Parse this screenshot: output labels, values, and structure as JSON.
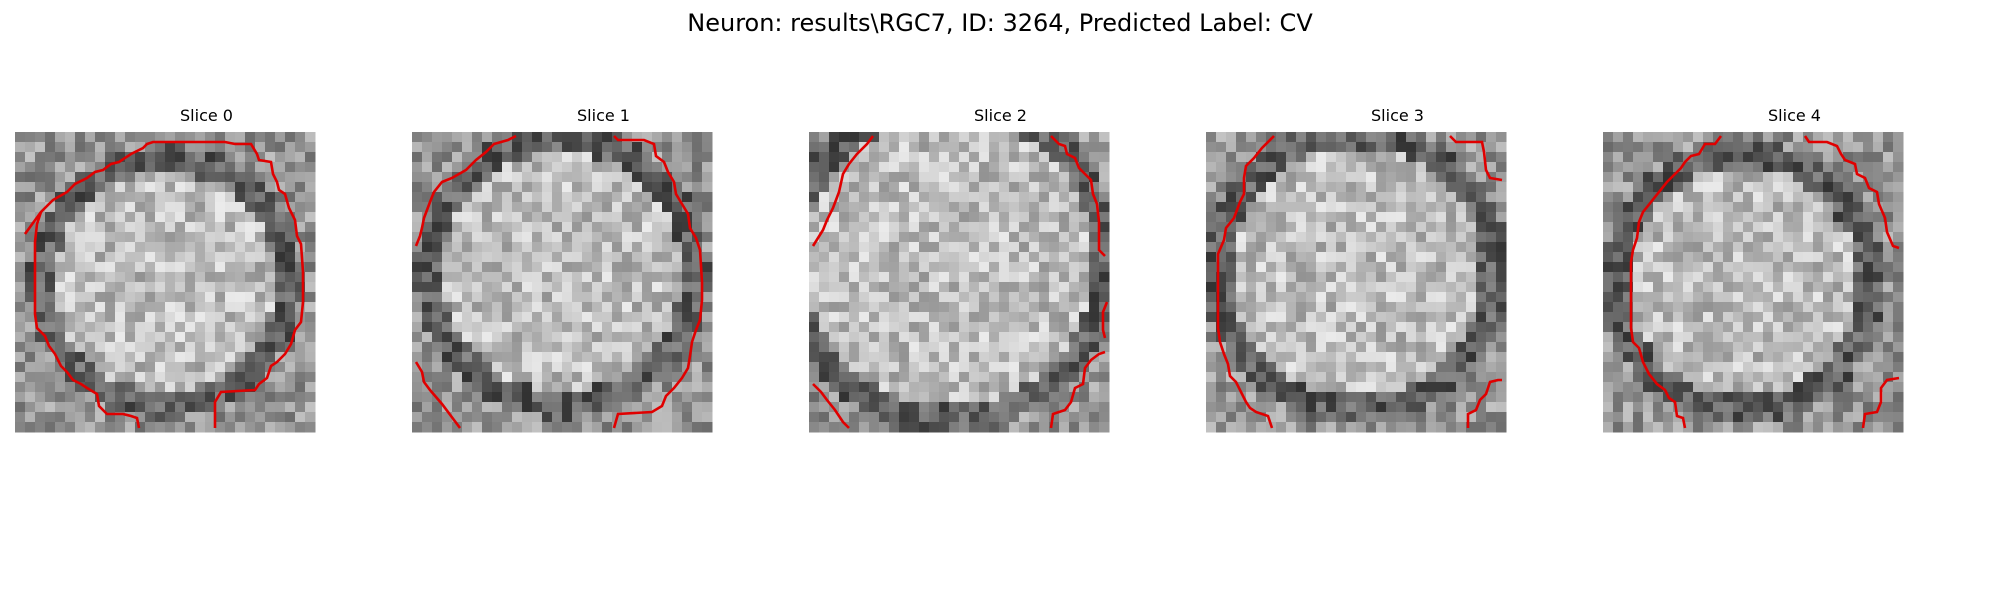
{
  "figure": {
    "title": "Neuron: results\\RGC7, ID: 3264, Predicted Label: CV",
    "colormap": "grayscale",
    "contour_color": "#ff0000",
    "panels": [
      {
        "title": "Slice 0"
      },
      {
        "title": "Slice 1"
      },
      {
        "title": "Slice 2"
      },
      {
        "title": "Slice 3"
      },
      {
        "title": "Slice 4"
      }
    ]
  }
}
